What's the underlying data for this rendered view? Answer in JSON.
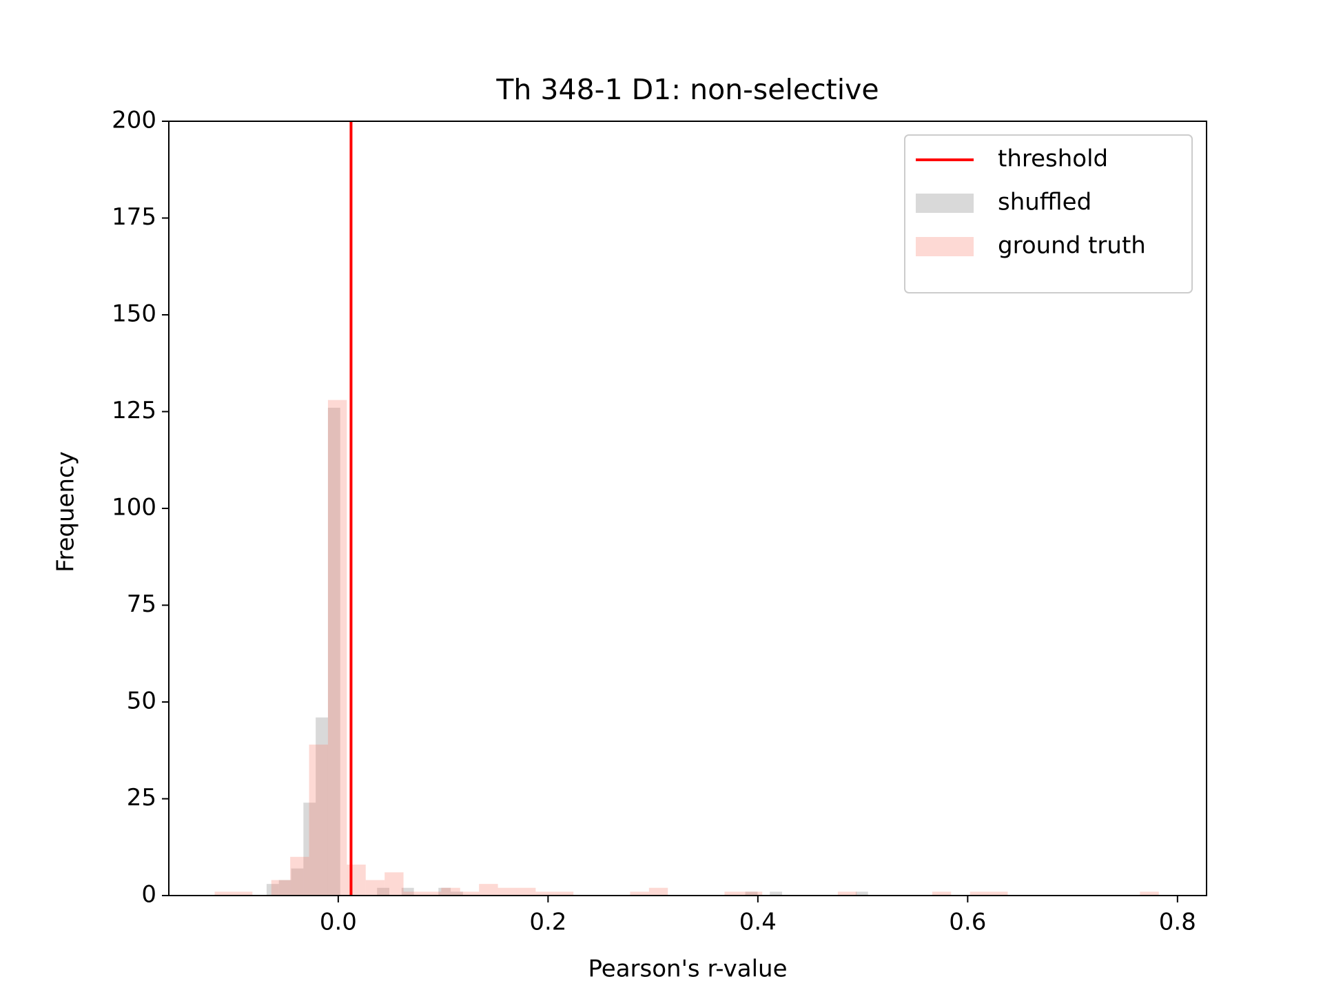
{
  "chart_data": {
    "type": "histogram",
    "title": "Th 348-1 D1: non-selective",
    "xlabel": "Pearson's r-value",
    "ylabel": "Frequency",
    "xlim": [
      -0.1615,
      0.8277
    ],
    "ylim": [
      0,
      200
    ],
    "xticks": [
      {
        "value": 0,
        "label": "0.0"
      },
      {
        "value": 0.2,
        "label": "0.2"
      },
      {
        "value": 0.4,
        "label": "0.4"
      },
      {
        "value": 0.6,
        "label": "0.6"
      },
      {
        "value": 0.8,
        "label": "0.8"
      }
    ],
    "yticks": [
      0,
      25,
      50,
      75,
      100,
      125,
      150,
      175,
      200
    ],
    "legend": "upper right",
    "threshold": {
      "name": "threshold",
      "value": 0.0122,
      "color": "#ff0000"
    },
    "series": [
      {
        "name": "shuffled",
        "color": "#808080",
        "bins": [
          -0.0683,
          -0.0566,
          -0.0449,
          -0.0332,
          -0.0215,
          -0.0098,
          0.0019,
          0.0136,
          0.0253,
          0.037,
          0.0487,
          0.0604,
          0.0721,
          0.0838,
          0.0955,
          0.1072,
          0.1189,
          0.1306,
          0.1423,
          0.154,
          0.1657,
          0.1774,
          0.1891,
          0.2008,
          0.2125,
          0.2242,
          0.2359,
          0.2476,
          0.2593,
          0.271,
          0.2827,
          0.2944,
          0.3061,
          0.3178,
          0.3295,
          0.3412,
          0.3529,
          0.3646,
          0.3763,
          0.388,
          0.3997,
          0.4114,
          0.4231,
          0.4348,
          0.4465,
          0.4582,
          0.4699,
          0.4816,
          0.4933,
          0.505,
          0.5167
        ],
        "values": [
          3,
          4,
          7,
          24,
          46,
          126,
          0,
          0,
          0,
          2,
          0,
          2,
          0,
          0,
          2,
          1,
          0,
          0,
          0,
          0,
          0,
          0,
          0,
          0,
          0,
          0,
          0,
          0,
          0,
          0,
          0,
          0,
          0,
          0,
          0,
          0,
          0,
          0,
          0,
          1,
          0,
          1,
          0,
          0,
          0,
          0,
          0,
          0,
          1,
          0
        ]
      },
      {
        "name": "ground truth",
        "color": "#fa8072",
        "bins": [
          -0.1178,
          -0.0998,
          -0.0818,
          -0.0638,
          -0.0458,
          -0.0278,
          -0.0098,
          0.0082,
          0.0262,
          0.0442,
          0.0622,
          0.0802,
          0.0982,
          0.1162,
          0.1342,
          0.1522,
          0.1702,
          0.1882,
          0.2062,
          0.2242,
          0.2422,
          0.2602,
          0.2782,
          0.2962,
          0.3142,
          0.3322,
          0.3502,
          0.3682,
          0.3862,
          0.4042,
          0.4222,
          0.4402,
          0.4582,
          0.4762,
          0.4942,
          0.5122,
          0.5302,
          0.5482,
          0.5662,
          0.5842,
          0.6022,
          0.6202,
          0.6382,
          0.6562,
          0.6742,
          0.6922,
          0.7102,
          0.7282,
          0.7462,
          0.7642,
          0.7822
        ],
        "values": [
          1,
          1,
          0,
          4,
          10,
          39,
          128,
          8,
          4,
          6,
          1,
          1,
          2,
          1,
          3,
          2,
          2,
          1,
          1,
          0,
          0,
          0,
          1,
          2,
          0,
          0,
          0,
          1,
          1,
          0,
          0,
          0,
          0,
          1,
          0,
          0,
          0,
          0,
          1,
          0,
          1,
          1,
          0,
          0,
          0,
          0,
          0,
          0,
          0,
          1
        ]
      }
    ]
  }
}
